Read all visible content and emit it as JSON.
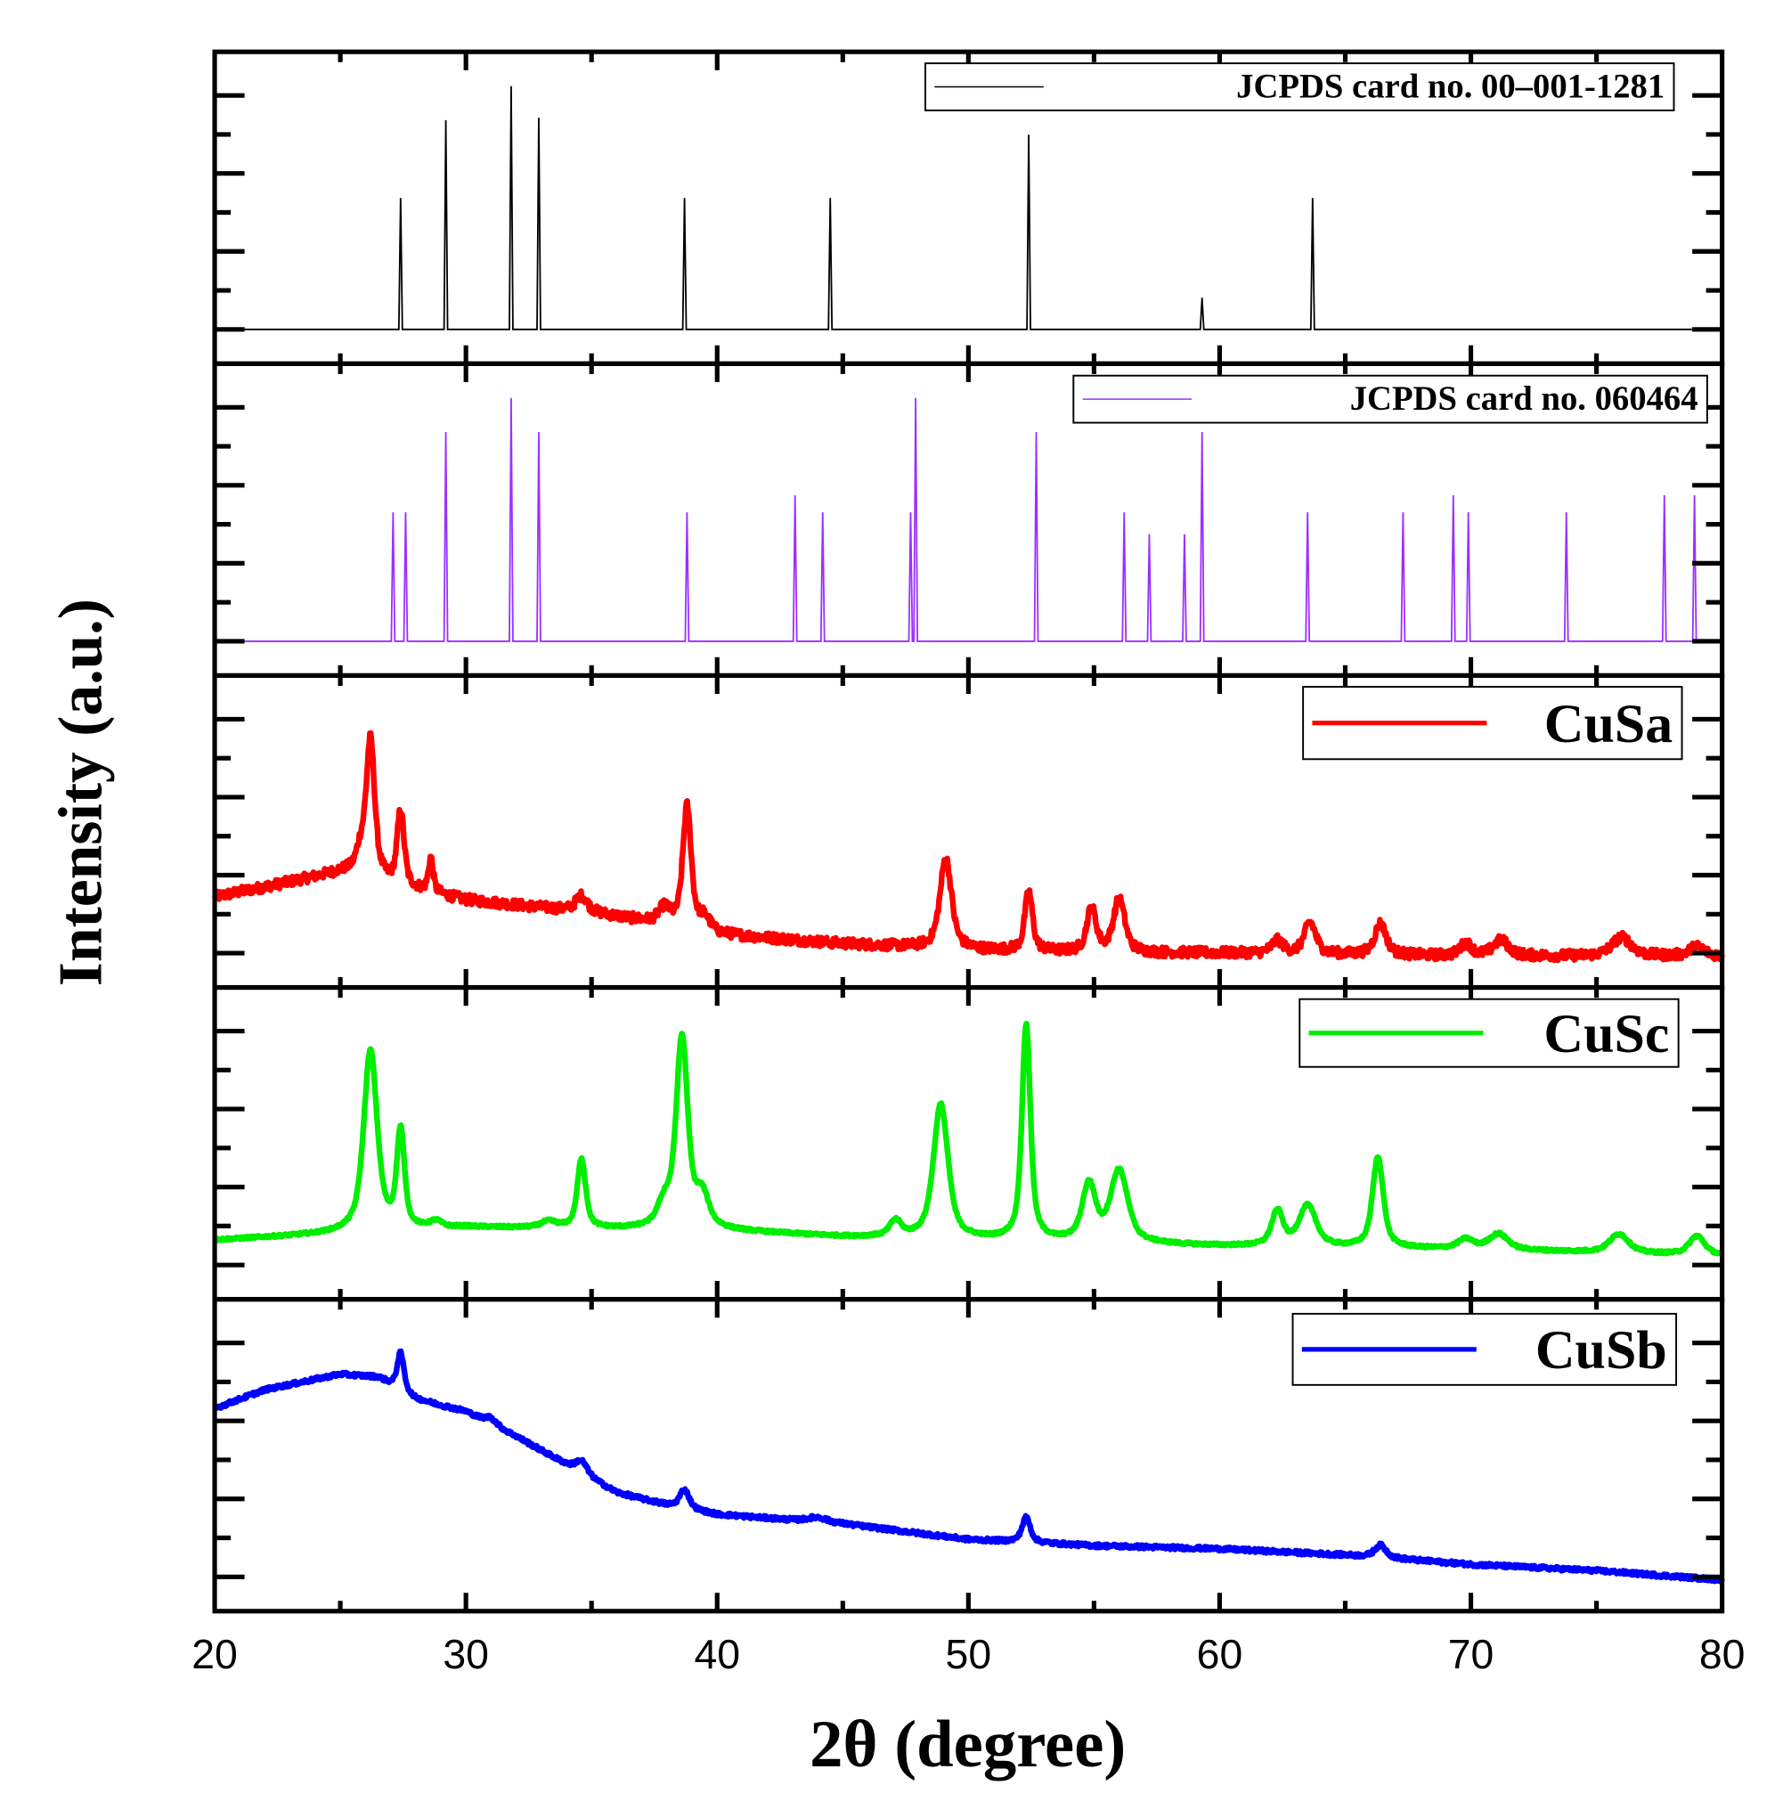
{
  "chart_data": {
    "type": "line",
    "title": "",
    "xlabel": "2θ (degree)",
    "ylabel": "Intensity (a.u.)",
    "xlim": [
      20,
      80
    ],
    "xticks": [
      20,
      30,
      40,
      50,
      60,
      70,
      80
    ],
    "xtick_labels": [
      "20",
      "30",
      "40",
      "50",
      "60",
      "70",
      "80"
    ],
    "layout": "stacked-panels",
    "panels": [
      {
        "kind": "reference",
        "legend": "JCPDS card no. 00–001-1281",
        "color": "#000000",
        "peaks": [
          [
            27.4,
            0.54
          ],
          [
            29.2,
            0.86
          ],
          [
            31.8,
            1.0
          ],
          [
            32.9,
            0.87
          ],
          [
            38.7,
            0.54
          ],
          [
            44.5,
            0.54
          ],
          [
            52.4,
            0.8
          ],
          [
            59.3,
            0.13
          ],
          [
            63.7,
            0.54
          ]
        ]
      },
      {
        "kind": "reference",
        "legend": "JCPDS card no. 060464",
        "color": "#9b30ff",
        "peaks": [
          [
            27.1,
            0.53
          ],
          [
            27.6,
            0.53
          ],
          [
            29.2,
            0.86
          ],
          [
            31.8,
            1.0
          ],
          [
            32.9,
            0.86
          ],
          [
            38.8,
            0.53
          ],
          [
            43.1,
            0.6
          ],
          [
            44.2,
            0.53
          ],
          [
            47.7,
            0.53
          ],
          [
            47.9,
            1.0
          ],
          [
            52.7,
            0.86
          ],
          [
            56.2,
            0.53
          ],
          [
            57.2,
            0.44
          ],
          [
            58.6,
            0.44
          ],
          [
            59.3,
            0.86
          ],
          [
            63.5,
            0.53
          ],
          [
            67.3,
            0.53
          ],
          [
            69.3,
            0.6
          ],
          [
            69.9,
            0.53
          ],
          [
            73.8,
            0.53
          ],
          [
            77.7,
            0.6
          ],
          [
            78.9,
            0.6
          ]
        ]
      },
      {
        "kind": "sample",
        "legend": "CuSa",
        "color": "#ff0000",
        "noise": 1.6,
        "background": [
          [
            20,
            29
          ],
          [
            25,
            37
          ],
          [
            26,
            37
          ],
          [
            27,
            33
          ],
          [
            30,
            28
          ],
          [
            35,
            24
          ],
          [
            38,
            20
          ],
          [
            40,
            17
          ],
          [
            45,
            14
          ],
          [
            50,
            12
          ],
          [
            55,
            11
          ],
          [
            60,
            11
          ],
          [
            70,
            10
          ],
          [
            80,
            10
          ]
        ],
        "peaks": [
          [
            26.2,
            43,
            0.22
          ],
          [
            25.8,
            6,
            0.2
          ],
          [
            27.4,
            24,
            0.18
          ],
          [
            28.6,
            11,
            0.12
          ],
          [
            34.6,
            5,
            0.3
          ],
          [
            37.9,
            5,
            0.3
          ],
          [
            38.8,
            39,
            0.22
          ],
          [
            39.5,
            4,
            0.3
          ],
          [
            49.1,
            29,
            0.3
          ],
          [
            52.4,
            19,
            0.2
          ],
          [
            54.9,
            14,
            0.25
          ],
          [
            56.0,
            17,
            0.3
          ],
          [
            62.3,
            4,
            0.3
          ],
          [
            63.6,
            10,
            0.3
          ],
          [
            66.4,
            10,
            0.3
          ],
          [
            69.8,
            4,
            0.3
          ],
          [
            71.2,
            5,
            0.4
          ],
          [
            76.0,
            6,
            0.5
          ],
          [
            79.0,
            3,
            0.4
          ]
        ]
      },
      {
        "kind": "sample",
        "legend": "CuSc",
        "color": "#00ee00",
        "noise": 0.4,
        "background": [
          [
            20,
            19
          ],
          [
            30,
            23
          ],
          [
            40,
            22
          ],
          [
            45,
            20
          ],
          [
            50,
            19
          ],
          [
            60,
            17
          ],
          [
            70,
            16
          ],
          [
            80,
            14
          ]
        ],
        "peaks": [
          [
            26.2,
            58,
            0.35
          ],
          [
            27.4,
            31,
            0.2
          ],
          [
            28.8,
            2,
            0.3
          ],
          [
            33.3,
            2,
            0.4
          ],
          [
            34.6,
            22,
            0.22
          ],
          [
            37.9,
            7,
            0.35
          ],
          [
            38.6,
            61,
            0.3
          ],
          [
            39.4,
            10,
            0.35
          ],
          [
            47.1,
            5,
            0.3
          ],
          [
            48.9,
            43,
            0.38
          ],
          [
            52.3,
            69,
            0.22
          ],
          [
            54.8,
            18,
            0.35
          ],
          [
            56.0,
            23,
            0.45
          ],
          [
            62.3,
            11,
            0.3
          ],
          [
            63.5,
            13,
            0.45
          ],
          [
            66.3,
            29,
            0.28
          ],
          [
            69.8,
            3,
            0.4
          ],
          [
            71.1,
            5,
            0.5
          ],
          [
            75.9,
            6,
            0.5
          ],
          [
            79.0,
            6,
            0.4
          ]
        ]
      },
      {
        "kind": "sample",
        "legend": "CuSb",
        "color": "#0000ff",
        "noise": 0.6,
        "background": [
          [
            20,
            65
          ],
          [
            22,
            71
          ],
          [
            25,
            76
          ],
          [
            26.5,
            75
          ],
          [
            28,
            68
          ],
          [
            30,
            64
          ],
          [
            32,
            56
          ],
          [
            34,
            47
          ],
          [
            36,
            38
          ],
          [
            38,
            34
          ],
          [
            40,
            31
          ],
          [
            45,
            28
          ],
          [
            50,
            23
          ],
          [
            55,
            21
          ],
          [
            60,
            20
          ],
          [
            65,
            18
          ],
          [
            70,
            15
          ],
          [
            75,
            13
          ],
          [
            80,
            10
          ]
        ],
        "peaks": [
          [
            27.4,
            12,
            0.18
          ],
          [
            31.0,
            2,
            0.3
          ],
          [
            34.6,
            4,
            0.3
          ],
          [
            38.7,
            6,
            0.25
          ],
          [
            44.0,
            1.5,
            0.5
          ],
          [
            52.3,
            8,
            0.22
          ],
          [
            66.4,
            4,
            0.3
          ]
        ]
      }
    ]
  }
}
